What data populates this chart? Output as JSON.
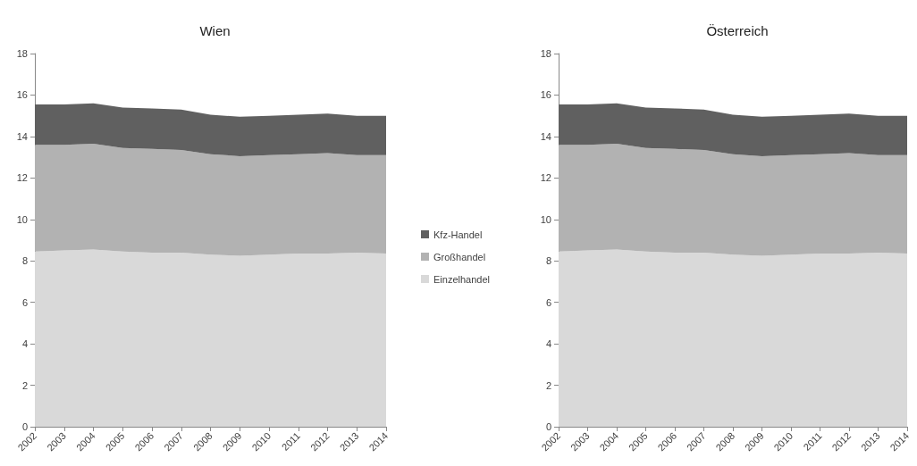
{
  "chart_data": [
    {
      "type": "area",
      "title": "Wien",
      "stacked": true,
      "grid": false,
      "legend": "right",
      "categories": [
        "2002",
        "2003",
        "2004",
        "2005",
        "2006",
        "2007",
        "2008",
        "2009",
        "2010",
        "2011",
        "2012",
        "2013",
        "2014"
      ],
      "ylim": [
        0,
        18
      ],
      "yticks": [
        0,
        2,
        4,
        6,
        8,
        10,
        12,
        14,
        16,
        18
      ],
      "series": [
        {
          "name": "Einzelhandel",
          "color": "#d9d9d9",
          "values": [
            8.45,
            8.5,
            8.55,
            8.45,
            8.4,
            8.4,
            8.3,
            8.25,
            8.3,
            8.35,
            8.35,
            8.4,
            8.35
          ]
        },
        {
          "name": "Großhandel",
          "color": "#b2b2b2",
          "values": [
            5.15,
            5.1,
            5.1,
            5.0,
            5.0,
            4.95,
            4.85,
            4.8,
            4.8,
            4.8,
            4.85,
            4.7,
            4.75
          ]
        },
        {
          "name": "Kfz-Handel",
          "color": "#606060",
          "values": [
            1.95,
            1.95,
            1.95,
            1.95,
            1.95,
            1.95,
            1.9,
            1.9,
            1.9,
            1.9,
            1.9,
            1.9,
            1.9
          ]
        }
      ]
    },
    {
      "type": "area",
      "title": "Österreich",
      "stacked": true,
      "grid": false,
      "legend": false,
      "categories": [
        "2002",
        "2003",
        "2004",
        "2005",
        "2006",
        "2007",
        "2008",
        "2009",
        "2010",
        "2011",
        "2012",
        "2013",
        "2014"
      ],
      "ylim": [
        0,
        18
      ],
      "yticks": [
        0,
        2,
        4,
        6,
        8,
        10,
        12,
        14,
        16,
        18
      ],
      "series": [
        {
          "color": "#d9d9d9",
          "values": [
            8.45,
            8.5,
            8.55,
            8.45,
            8.4,
            8.4,
            8.3,
            8.25,
            8.3,
            8.35,
            8.35,
            8.4,
            8.35
          ]
        },
        {
          "color": "#b2b2b2",
          "values": [
            5.15,
            5.1,
            5.1,
            5.0,
            5.0,
            4.95,
            4.85,
            4.8,
            4.8,
            4.8,
            4.85,
            4.7,
            4.75
          ]
        },
        {
          "color": "#606060",
          "values": [
            1.95,
            1.95,
            1.95,
            1.95,
            1.95,
            1.95,
            1.9,
            1.9,
            1.9,
            1.9,
            1.9,
            1.9,
            1.9
          ]
        }
      ]
    }
  ]
}
